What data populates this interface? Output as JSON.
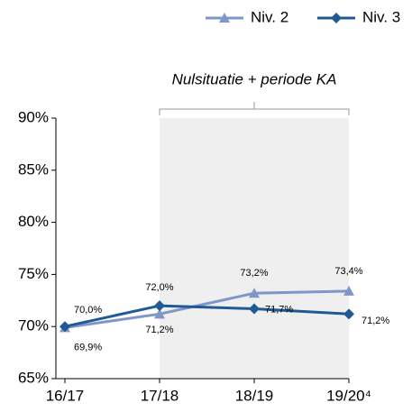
{
  "chart_data": {
    "type": "line",
    "annotation": "Nulsituatie + periode KA",
    "categories": [
      "16/17",
      "17/18",
      "18/19",
      "19/20⁴"
    ],
    "series": [
      {
        "name": "Niv. 2",
        "color": "#7f97c8",
        "marker": "triangle",
        "values": [
          69.9,
          71.2,
          73.2,
          73.4
        ],
        "value_labels": [
          "69,9%",
          "71,2%",
          "73,2%",
          "73,4%"
        ]
      },
      {
        "name": "Niv. 3",
        "color": "#1f5a94",
        "marker": "diamond",
        "values": [
          70.0,
          72.0,
          71.7,
          71.2
        ],
        "value_labels": [
          "70,0%",
          "72,0%",
          "71,7%",
          "71,2%"
        ]
      }
    ],
    "ylim": [
      65,
      90
    ],
    "yticks": [
      {
        "value": 65,
        "label": "65%"
      },
      {
        "value": 70,
        "label": "70%"
      },
      {
        "value": 75,
        "label": "75%"
      },
      {
        "value": 80,
        "label": "80%"
      },
      {
        "value": 85,
        "label": "85%"
      },
      {
        "value": 90,
        "label": "90%"
      }
    ],
    "legend": "top-right"
  }
}
